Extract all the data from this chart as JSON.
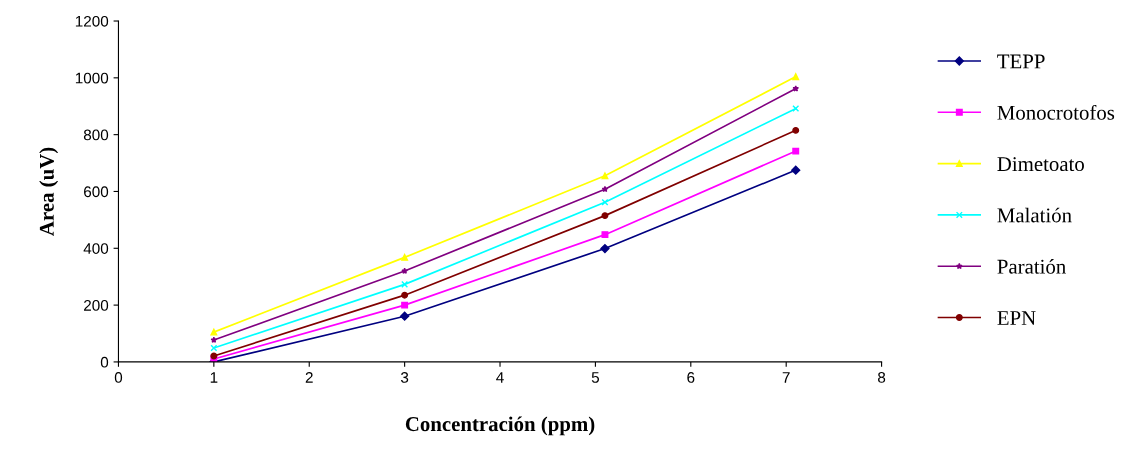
{
  "chart_data": {
    "type": "line",
    "xlabel": "Concentración (ppm)",
    "ylabel": "Area (uV)",
    "x": [
      1,
      3,
      5.1,
      7.1
    ],
    "xlim": [
      0,
      8
    ],
    "xticks": [
      0,
      1,
      2,
      3,
      4,
      5,
      6,
      7,
      8
    ],
    "ylim": [
      0,
      1200
    ],
    "yticks": [
      0,
      200,
      400,
      600,
      800,
      1000,
      1200
    ],
    "grid": false,
    "legend": "right",
    "line_style": "solid",
    "series": [
      {
        "name": "TEPP",
        "color": "#000080",
        "marker": "diamond",
        "values": [
          0,
          161,
          399,
          675
        ]
      },
      {
        "name": "Monocrotofos",
        "color": "#ff00ff",
        "marker": "square",
        "values": [
          10,
          200,
          448,
          742
        ]
      },
      {
        "name": "Dimetoato",
        "color": "#ffff00",
        "marker": "triangle",
        "values": [
          105,
          368,
          655,
          1004
        ]
      },
      {
        "name": "Malatión",
        "color": "#00ffff",
        "marker": "cross",
        "values": [
          49,
          273,
          562,
          892
        ]
      },
      {
        "name": "Paratión",
        "color": "#800080",
        "marker": "star",
        "values": [
          77,
          320,
          608,
          962
        ]
      },
      {
        "name": "EPN",
        "color": "#800000",
        "marker": "circle",
        "values": [
          21,
          235,
          515,
          815
        ]
      }
    ]
  }
}
